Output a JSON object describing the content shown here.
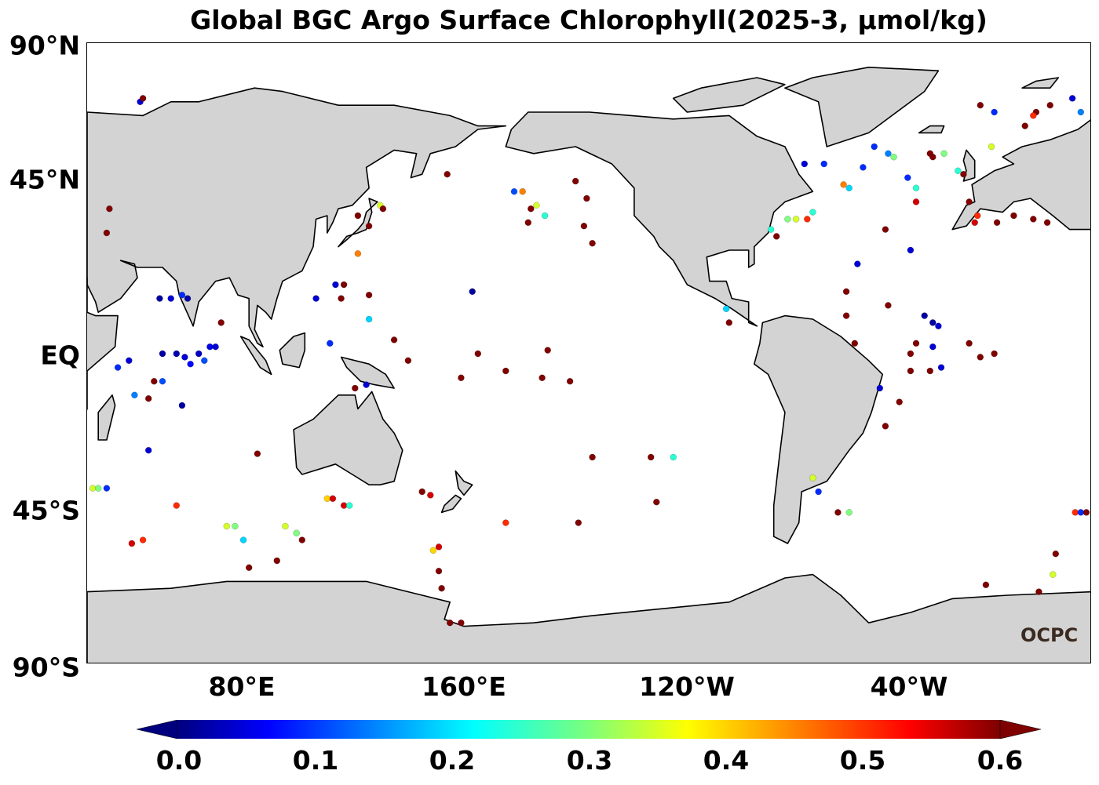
{
  "title": "Global BGC Argo Surface Chlorophyll(2025-3, μmol/kg)",
  "map": {
    "projection": "equirectangular",
    "lon_range": [
      40,
      400
    ],
    "lat_range": [
      -90,
      90
    ],
    "land_color": "#d3d3d3",
    "coast_color": "#000000",
    "ocean_color": "#ffffff"
  },
  "y_ticks": [
    {
      "label": "90°N",
      "lat": 90
    },
    {
      "label": "45°N",
      "lat": 45
    },
    {
      "label": "EQ",
      "lat": 0
    },
    {
      "label": "45°S",
      "lat": -45
    },
    {
      "label": "90°S",
      "lat": -90
    }
  ],
  "x_ticks": [
    {
      "label": "80°E",
      "lon": 80
    },
    {
      "label": "160°E",
      "lon": 160
    },
    {
      "label": "120°W",
      "lon": 240
    },
    {
      "label": "40°W",
      "lon": 320
    }
  ],
  "colorbar": {
    "colormap": "jet",
    "min": 0.0,
    "max": 0.6,
    "extend": "both",
    "ticks": [
      "0.0",
      "0.1",
      "0.2",
      "0.3",
      "0.4",
      "0.5",
      "0.6"
    ]
  },
  "watermark": "OCPC",
  "chart_data": {
    "type": "scatter",
    "title": "Global BGC Argo Surface Chlorophyll(2025-3, μmol/kg)",
    "x_label": "",
    "y_label": "",
    "value_range": [
      0.0,
      0.6
    ],
    "points": [
      {
        "lon": 59,
        "lat": 73,
        "v": 0.05
      },
      {
        "lon": 60,
        "lat": 74,
        "v": 0.6
      },
      {
        "lon": 48,
        "lat": 42,
        "v": 0.6
      },
      {
        "lon": 47,
        "lat": 35,
        "v": 0.6
      },
      {
        "lon": 66,
        "lat": 16,
        "v": 0.02
      },
      {
        "lon": 70,
        "lat": 16,
        "v": 0.05
      },
      {
        "lon": 74,
        "lat": 17,
        "v": 0.1
      },
      {
        "lon": 76,
        "lat": 16,
        "v": 0.02
      },
      {
        "lon": 67,
        "lat": 0,
        "v": 0.02
      },
      {
        "lon": 72,
        "lat": 0,
        "v": 0.03
      },
      {
        "lon": 75,
        "lat": -1,
        "v": 0.05
      },
      {
        "lon": 77,
        "lat": -3,
        "v": 0.08
      },
      {
        "lon": 80,
        "lat": 0,
        "v": 0.04
      },
      {
        "lon": 82,
        "lat": -2,
        "v": 0.12
      },
      {
        "lon": 84,
        "lat": 2,
        "v": 0.06
      },
      {
        "lon": 88,
        "lat": 9,
        "v": 0.6
      },
      {
        "lon": 86,
        "lat": 2,
        "v": 0.05
      },
      {
        "lon": 51,
        "lat": -4,
        "v": 0.1
      },
      {
        "lon": 55,
        "lat": -2,
        "v": 0.05
      },
      {
        "lon": 57,
        "lat": -12,
        "v": 0.15
      },
      {
        "lon": 62,
        "lat": -13,
        "v": 0.6
      },
      {
        "lon": 64,
        "lat": -8,
        "v": 0.6
      },
      {
        "lon": 67,
        "lat": -8,
        "v": 0.12
      },
      {
        "lon": 74,
        "lat": -15,
        "v": 0.02
      },
      {
        "lon": 62,
        "lat": -28,
        "v": 0.05
      },
      {
        "lon": 42,
        "lat": -39,
        "v": 0.35
      },
      {
        "lon": 44,
        "lat": -39,
        "v": 0.3
      },
      {
        "lon": 47,
        "lat": -39,
        "v": 0.1
      },
      {
        "lon": 60,
        "lat": -54,
        "v": 0.5
      },
      {
        "lon": 72,
        "lat": -44,
        "v": 0.5
      },
      {
        "lon": 56,
        "lat": -55,
        "v": 0.55
      },
      {
        "lon": 90,
        "lat": -50,
        "v": 0.35
      },
      {
        "lon": 93,
        "lat": -50,
        "v": 0.3
      },
      {
        "lon": 96,
        "lat": -54,
        "v": 0.2
      },
      {
        "lon": 98,
        "lat": -62,
        "v": 0.6
      },
      {
        "lon": 101,
        "lat": -29,
        "v": 0.6
      },
      {
        "lon": 108,
        "lat": -60,
        "v": 0.6
      },
      {
        "lon": 111,
        "lat": -50,
        "v": 0.35
      },
      {
        "lon": 117,
        "lat": -54,
        "v": 0.6
      },
      {
        "lon": 115,
        "lat": -52,
        "v": 0.3
      },
      {
        "lon": 126,
        "lat": -42,
        "v": 0.4
      },
      {
        "lon": 128,
        "lat": -42,
        "v": 0.55
      },
      {
        "lon": 132,
        "lat": -44,
        "v": 0.55
      },
      {
        "lon": 134,
        "lat": -44,
        "v": 0.25
      },
      {
        "lon": 141,
        "lat": 10,
        "v": 0.2
      },
      {
        "lon": 140,
        "lat": -9,
        "v": 0.05
      },
      {
        "lon": 136,
        "lat": -10,
        "v": 0.6
      },
      {
        "lon": 137,
        "lat": 40,
        "v": 0.6
      },
      {
        "lon": 141,
        "lat": 37,
        "v": 0.6
      },
      {
        "lon": 145,
        "lat": 43,
        "v": 0.35
      },
      {
        "lon": 146,
        "lat": 42,
        "v": 0.6
      },
      {
        "lon": 137,
        "lat": 29,
        "v": 0.45
      },
      {
        "lon": 132,
        "lat": 20,
        "v": 0.6
      },
      {
        "lon": 129,
        "lat": 20,
        "v": 0.05
      },
      {
        "lon": 131,
        "lat": 16,
        "v": 0.6
      },
      {
        "lon": 122,
        "lat": 16,
        "v": 0.05
      },
      {
        "lon": 127,
        "lat": 3,
        "v": 0.1
      },
      {
        "lon": 141,
        "lat": 17,
        "v": 0.6
      },
      {
        "lon": 150,
        "lat": 4,
        "v": 0.6
      },
      {
        "lon": 155,
        "lat": -2,
        "v": 0.6
      },
      {
        "lon": 174,
        "lat": -7,
        "v": 0.6
      },
      {
        "lon": 180,
        "lat": 0,
        "v": 0.6
      },
      {
        "lon": 190,
        "lat": -5,
        "v": 0.6
      },
      {
        "lon": 205,
        "lat": 1,
        "v": 0.6
      },
      {
        "lon": 178,
        "lat": 18,
        "v": 0.02
      },
      {
        "lon": 160,
        "lat": -40,
        "v": 0.6
      },
      {
        "lon": 163,
        "lat": -41,
        "v": 0.55
      },
      {
        "lon": 164,
        "lat": -57,
        "v": 0.4
      },
      {
        "lon": 166,
        "lat": -56,
        "v": 0.55
      },
      {
        "lon": 166,
        "lat": -63,
        "v": 0.6
      },
      {
        "lon": 167,
        "lat": -68,
        "v": 0.6
      },
      {
        "lon": 170,
        "lat": -78,
        "v": 0.6
      },
      {
        "lon": 174,
        "lat": -78,
        "v": 0.6
      },
      {
        "lon": 169,
        "lat": 52,
        "v": 0.6
      },
      {
        "lon": 193,
        "lat": 47,
        "v": 0.12
      },
      {
        "lon": 196,
        "lat": 47,
        "v": 0.45
      },
      {
        "lon": 201,
        "lat": 43,
        "v": 0.35
      },
      {
        "lon": 198,
        "lat": 38,
        "v": 0.6
      },
      {
        "lon": 199,
        "lat": 42,
        "v": 0.6
      },
      {
        "lon": 204,
        "lat": 40,
        "v": 0.25
      },
      {
        "lon": 215,
        "lat": 50,
        "v": 0.6
      },
      {
        "lon": 219,
        "lat": 45,
        "v": 0.6
      },
      {
        "lon": 218,
        "lat": 37,
        "v": 0.6
      },
      {
        "lon": 221,
        "lat": 32,
        "v": 0.6
      },
      {
        "lon": 203,
        "lat": -7,
        "v": 0.6
      },
      {
        "lon": 213,
        "lat": -8,
        "v": 0.6
      },
      {
        "lon": 190,
        "lat": -49,
        "v": 0.5
      },
      {
        "lon": 216,
        "lat": -49,
        "v": 0.6
      },
      {
        "lon": 221,
        "lat": -30,
        "v": 0.6
      },
      {
        "lon": 242,
        "lat": -30,
        "v": 0.6
      },
      {
        "lon": 250,
        "lat": -30,
        "v": 0.25
      },
      {
        "lon": 269,
        "lat": 13,
        "v": 0.2
      },
      {
        "lon": 270,
        "lat": 9,
        "v": 0.6
      },
      {
        "lon": 285,
        "lat": 36,
        "v": 0.25
      },
      {
        "lon": 287,
        "lat": 34,
        "v": 0.6
      },
      {
        "lon": 291,
        "lat": 39,
        "v": 0.3
      },
      {
        "lon": 294,
        "lat": 39,
        "v": 0.35
      },
      {
        "lon": 298,
        "lat": 39,
        "v": 0.5
      },
      {
        "lon": 300,
        "lat": 41,
        "v": 0.25
      },
      {
        "lon": 297,
        "lat": 55,
        "v": 0.05
      },
      {
        "lon": 304,
        "lat": 55,
        "v": 0.1
      },
      {
        "lon": 311,
        "lat": 49,
        "v": 0.45
      },
      {
        "lon": 313,
        "lat": 48,
        "v": 0.2
      },
      {
        "lon": 318,
        "lat": 54,
        "v": 0.1
      },
      {
        "lon": 322,
        "lat": 60,
        "v": 0.1
      },
      {
        "lon": 327,
        "lat": 58,
        "v": 0.15
      },
      {
        "lon": 329,
        "lat": 57,
        "v": 0.3
      },
      {
        "lon": 337,
        "lat": 48,
        "v": 0.25
      },
      {
        "lon": 334,
        "lat": 51,
        "v": 0.1
      },
      {
        "lon": 337,
        "lat": 44,
        "v": 0.55
      },
      {
        "lon": 342,
        "lat": 58,
        "v": 0.6
      },
      {
        "lon": 343,
        "lat": 57,
        "v": 0.6
      },
      {
        "lon": 347,
        "lat": 58,
        "v": 0.3
      },
      {
        "lon": 352,
        "lat": 53,
        "v": 0.25
      },
      {
        "lon": 354,
        "lat": 52,
        "v": 0.6
      },
      {
        "lon": 356,
        "lat": 44,
        "v": 0.6
      },
      {
        "lon": 358,
        "lat": 38,
        "v": 0.55
      },
      {
        "lon": 359,
        "lat": 40,
        "v": 0.5
      },
      {
        "lon": 366,
        "lat": 38,
        "v": 0.6
      },
      {
        "lon": 372,
        "lat": 40,
        "v": 0.6
      },
      {
        "lon": 379,
        "lat": 39,
        "v": 0.6
      },
      {
        "lon": 384,
        "lat": 38,
        "v": 0.6
      },
      {
        "lon": 360,
        "lat": 72,
        "v": 0.6
      },
      {
        "lon": 365,
        "lat": 70,
        "v": 0.1
      },
      {
        "lon": 380,
        "lat": 70,
        "v": 0.6
      },
      {
        "lon": 385,
        "lat": 72,
        "v": 0.6
      },
      {
        "lon": 393,
        "lat": 74,
        "v": 0.05
      },
      {
        "lon": 379,
        "lat": 69,
        "v": 0.5
      },
      {
        "lon": 396,
        "lat": 70,
        "v": 0.15
      },
      {
        "lon": 376,
        "lat": 66,
        "v": 0.6
      },
      {
        "lon": 364,
        "lat": 60,
        "v": 0.35
      },
      {
        "lon": 335,
        "lat": 30,
        "v": 0.05
      },
      {
        "lon": 326,
        "lat": 36,
        "v": 0.6
      },
      {
        "lon": 316,
        "lat": 26,
        "v": 0.05
      },
      {
        "lon": 312,
        "lat": 18,
        "v": 0.6
      },
      {
        "lon": 340,
        "lat": 11,
        "v": 0.02
      },
      {
        "lon": 343,
        "lat": 9,
        "v": 0.02
      },
      {
        "lon": 345,
        "lat": 8,
        "v": 0.05
      },
      {
        "lon": 337,
        "lat": 3,
        "v": 0.6
      },
      {
        "lon": 335,
        "lat": 0,
        "v": 0.6
      },
      {
        "lon": 343,
        "lat": 2,
        "v": 0.05
      },
      {
        "lon": 335,
        "lat": -5,
        "v": 0.6
      },
      {
        "lon": 342,
        "lat": -5,
        "v": 0.6
      },
      {
        "lon": 346,
        "lat": -4,
        "v": 0.05
      },
      {
        "lon": 324,
        "lat": -10,
        "v": 0.05
      },
      {
        "lon": 326,
        "lat": -21,
        "v": 0.6
      },
      {
        "lon": 331,
        "lat": -14,
        "v": 0.6
      },
      {
        "lon": 312,
        "lat": 11,
        "v": 0.6
      },
      {
        "lon": 315,
        "lat": 3,
        "v": 0.6
      },
      {
        "lon": 327,
        "lat": 14,
        "v": 0.6
      },
      {
        "lon": 356,
        "lat": 3,
        "v": 0.6
      },
      {
        "lon": 365,
        "lat": 0,
        "v": 0.6
      },
      {
        "lon": 360,
        "lat": -1,
        "v": 0.6
      },
      {
        "lon": 300,
        "lat": -36,
        "v": 0.35
      },
      {
        "lon": 302,
        "lat": -40,
        "v": 0.1
      },
      {
        "lon": 309,
        "lat": -46,
        "v": 0.6
      },
      {
        "lon": 313,
        "lat": -46,
        "v": 0.3
      },
      {
        "lon": 394,
        "lat": -46,
        "v": 0.5
      },
      {
        "lon": 396,
        "lat": -46,
        "v": 0.1
      },
      {
        "lon": 398,
        "lat": -46,
        "v": 0.6
      },
      {
        "lon": 387,
        "lat": -58,
        "v": 0.6
      },
      {
        "lon": 381,
        "lat": -69,
        "v": 0.6
      },
      {
        "lon": 386,
        "lat": -64,
        "v": 0.35
      },
      {
        "lon": 362,
        "lat": -67,
        "v": 0.6
      },
      {
        "lon": 244,
        "lat": -43,
        "v": 0.6
      }
    ]
  }
}
